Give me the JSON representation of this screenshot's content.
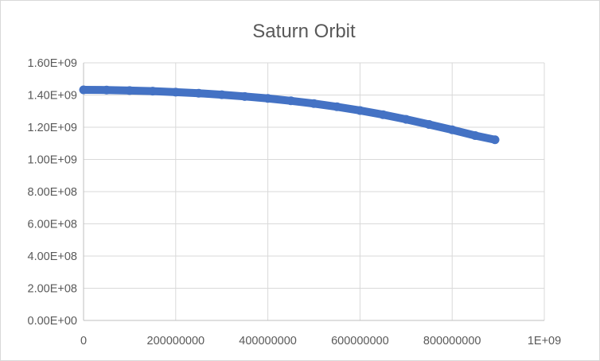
{
  "chart_data": {
    "type": "scatter",
    "title": "Saturn Orbit",
    "xlabel": "",
    "ylabel": "",
    "xlim": [
      0,
      1000000000
    ],
    "ylim": [
      0,
      1600000000
    ],
    "x_ticks": [
      {
        "value": 0,
        "label": "0"
      },
      {
        "value": 200000000,
        "label": "200000000"
      },
      {
        "value": 400000000,
        "label": "400000000"
      },
      {
        "value": 600000000,
        "label": "600000000"
      },
      {
        "value": 800000000,
        "label": "800000000"
      },
      {
        "value": 1000000000,
        "label": "1E+09"
      }
    ],
    "y_ticks": [
      {
        "value": 0,
        "label": "0.00E+00"
      },
      {
        "value": 200000000,
        "label": "2.00E+08"
      },
      {
        "value": 400000000,
        "label": "4.00E+08"
      },
      {
        "value": 600000000,
        "label": "6.00E+08"
      },
      {
        "value": 800000000,
        "label": "8.00E+08"
      },
      {
        "value": 1000000000,
        "label": "1.00E+09"
      },
      {
        "value": 1200000000,
        "label": "1.20E+09"
      },
      {
        "value": 1400000000,
        "label": "1.40E+09"
      },
      {
        "value": 1600000000,
        "label": "1.60E+09"
      }
    ],
    "grid": true,
    "legend": "none",
    "series": [
      {
        "color": "#4472c4",
        "points": [
          {
            "x": 0,
            "y": 1432000000
          },
          {
            "x": 50000000,
            "y": 1431000000
          },
          {
            "x": 100000000,
            "y": 1428000000
          },
          {
            "x": 150000000,
            "y": 1424000000
          },
          {
            "x": 200000000,
            "y": 1418000000
          },
          {
            "x": 250000000,
            "y": 1411000000
          },
          {
            "x": 300000000,
            "y": 1402000000
          },
          {
            "x": 350000000,
            "y": 1391000000
          },
          {
            "x": 400000000,
            "y": 1379000000
          },
          {
            "x": 450000000,
            "y": 1364000000
          },
          {
            "x": 500000000,
            "y": 1347000000
          },
          {
            "x": 550000000,
            "y": 1327000000
          },
          {
            "x": 600000000,
            "y": 1304000000
          },
          {
            "x": 650000000,
            "y": 1278000000
          },
          {
            "x": 700000000,
            "y": 1249000000
          },
          {
            "x": 750000000,
            "y": 1217000000
          },
          {
            "x": 800000000,
            "y": 1184000000
          },
          {
            "x": 850000000,
            "y": 1148000000
          },
          {
            "x": 893000000,
            "y": 1122000000
          }
        ]
      }
    ]
  }
}
